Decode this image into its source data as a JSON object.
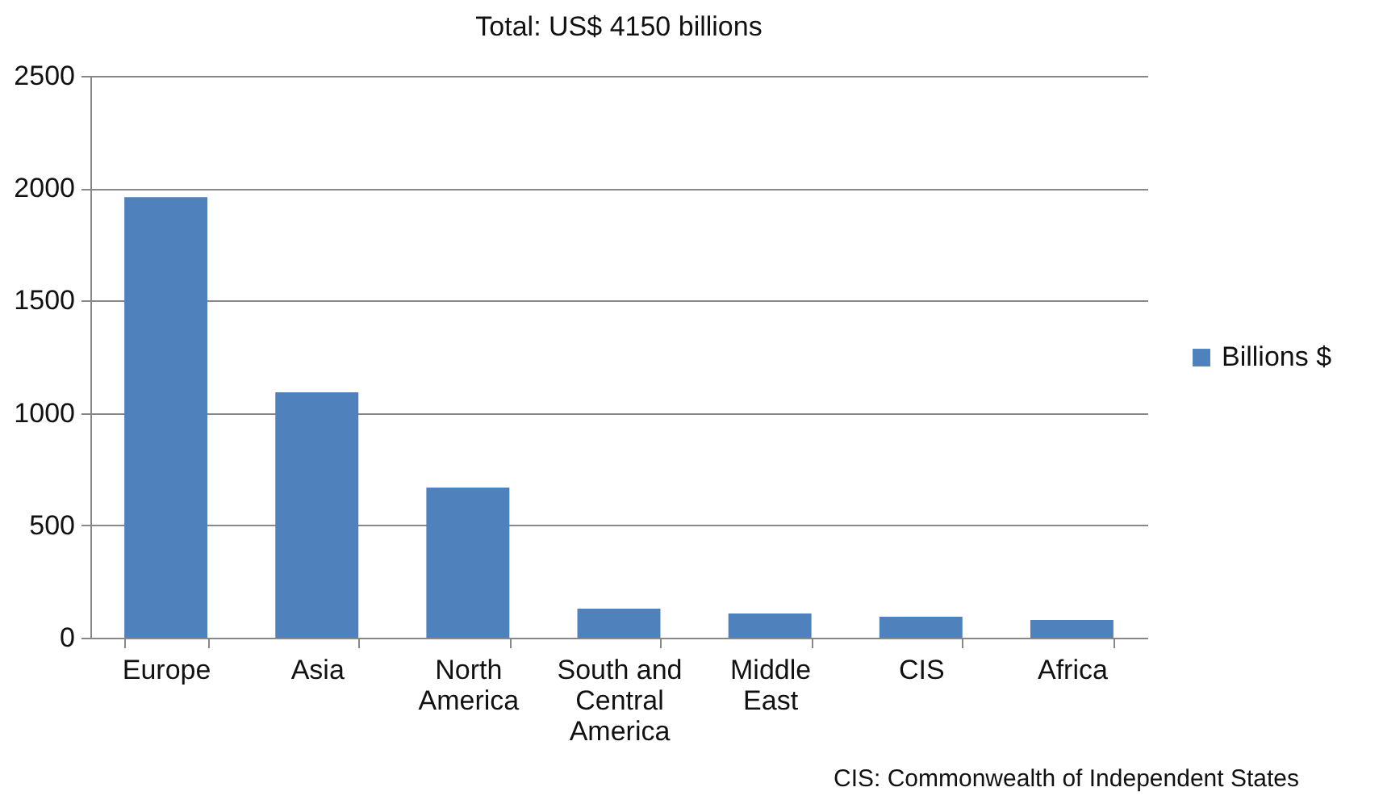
{
  "chart_data": {
    "type": "bar",
    "title": "Total: US$ 4150 billions",
    "categories": [
      "Europe",
      "Asia",
      "North America",
      "South and Central America",
      "Middle East",
      "CIS",
      "Africa"
    ],
    "series": [
      {
        "name": "Billions $",
        "color": "#4f81bd",
        "values": [
          1960,
          1092,
          668,
          129,
          108,
          93,
          79
        ]
      }
    ],
    "ylim": [
      0,
      2500
    ],
    "yticks": [
      0,
      500,
      1000,
      1500,
      2000,
      2500
    ],
    "grid": "y",
    "legend": "right",
    "annotations": [
      "CIS: Commonwealth of Independent States"
    ]
  }
}
